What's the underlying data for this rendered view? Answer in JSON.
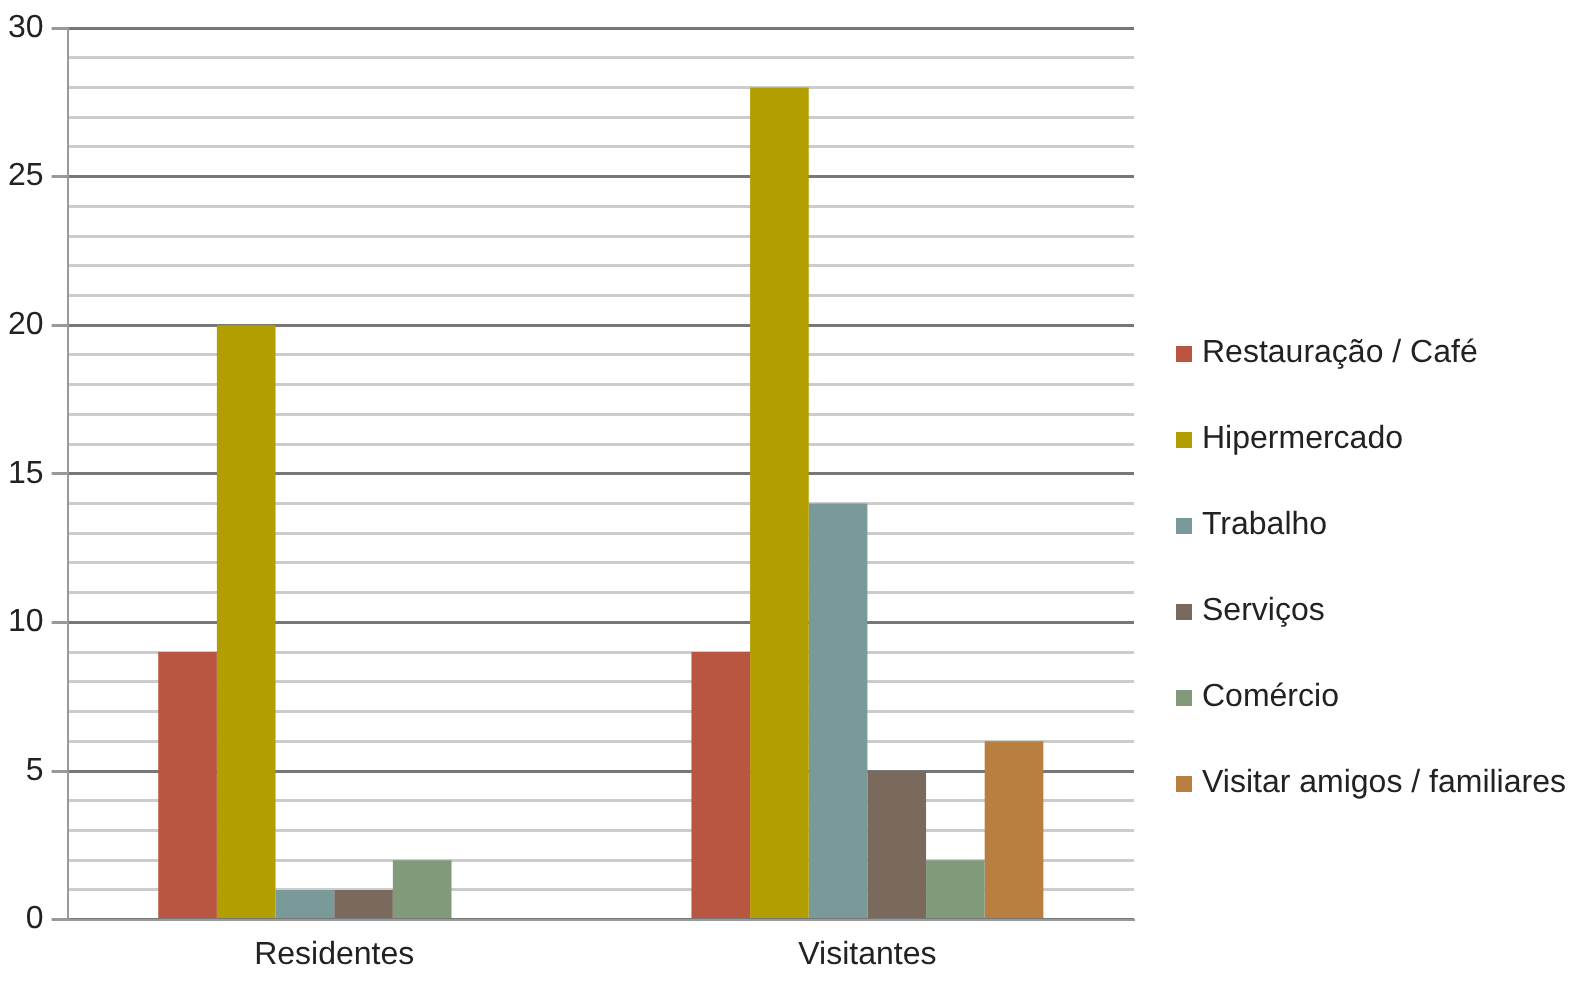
{
  "chart_data": {
    "type": "bar",
    "categories": [
      "Residentes",
      "Visitantes"
    ],
    "series": [
      {
        "name": "Restauração / Café",
        "color": "#b85642",
        "values": [
          9,
          9
        ]
      },
      {
        "name": "Hipermercado",
        "color": "#b39e00",
        "values": [
          20,
          28
        ]
      },
      {
        "name": "Trabalho",
        "color": "#7a9a9a",
        "values": [
          1,
          14
        ]
      },
      {
        "name": "Serviços",
        "color": "#7a6a5e",
        "values": [
          1,
          5
        ]
      },
      {
        "name": "Comércio",
        "color": "#809a7a",
        "values": [
          2,
          2
        ]
      },
      {
        "name": "Visitar amigos / familiares",
        "color": "#b87f40",
        "values": [
          null,
          6
        ]
      }
    ],
    "ylim": [
      0,
      30
    ],
    "yticks": [
      0,
      {
        "value": 1,
        "label": null
      },
      {
        "value": 2,
        "label": null
      },
      {
        "value": 3,
        "label": null
      },
      {
        "value": 4,
        "label": null
      },
      5,
      {
        "value": 6,
        "label": null
      },
      {
        "value": 7,
        "label": null
      },
      {
        "value": 8,
        "label": null
      },
      {
        "value": 9,
        "label": null
      },
      10,
      {
        "value": 11,
        "label": null
      },
      {
        "value": 12,
        "label": null
      },
      {
        "value": 13,
        "label": null
      },
      {
        "value": 14,
        "label": null
      },
      15,
      {
        "value": 16,
        "label": null
      },
      {
        "value": 17,
        "label": null
      },
      {
        "value": 18,
        "label": null
      },
      {
        "value": 19,
        "label": null
      },
      20,
      {
        "value": 21,
        "label": null
      },
      {
        "value": 22,
        "label": null
      },
      {
        "value": 23,
        "label": null
      },
      {
        "value": 24,
        "label": null
      },
      25,
      {
        "value": 26,
        "label": null
      },
      {
        "value": 27,
        "label": null
      },
      {
        "value": 28,
        "label": null
      },
      {
        "value": 29,
        "label": null
      },
      30
    ],
    "grid": "y",
    "legend": "right"
  }
}
